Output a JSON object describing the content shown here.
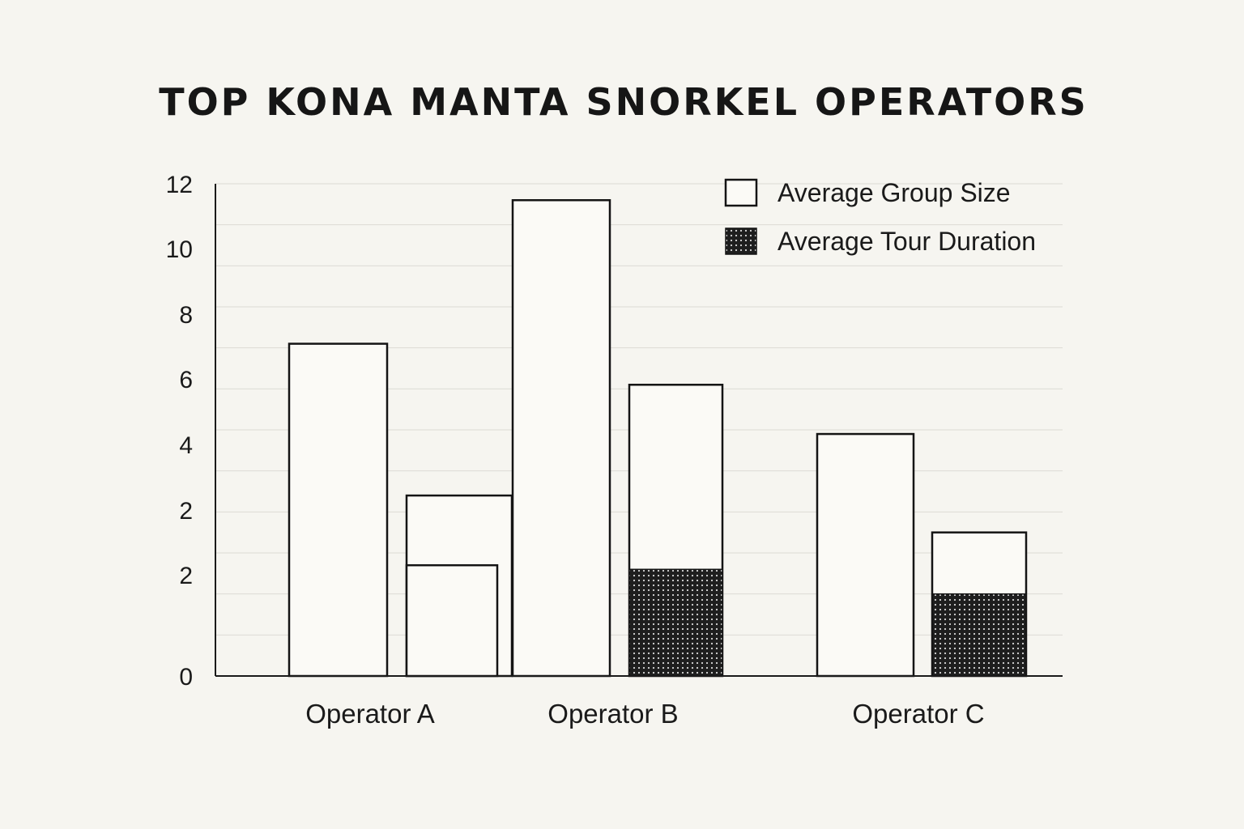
{
  "chart_data": {
    "type": "bar",
    "title": "TOP KONA MANTA SNORKEL OPERATORS",
    "xlabel": "",
    "ylabel": "",
    "ylim": [
      0,
      12
    ],
    "yticks": [
      "0",
      "2",
      "2",
      "4",
      "6",
      "8",
      "10",
      "12"
    ],
    "grid": true,
    "legend_position": "top-right",
    "legend": [
      {
        "label": "Average Group Size",
        "style": "empty"
      },
      {
        "label": "Average Tour Duration",
        "style": "dotted"
      }
    ],
    "categories": [
      "Operator A",
      "Operator B",
      "Operator C"
    ],
    "bars": [
      {
        "category": "Operator A",
        "style": "empty",
        "value": 8.1
      },
      {
        "category": "Operator A",
        "style": "empty",
        "value": 4.4
      },
      {
        "category": "Operator A",
        "style": "empty",
        "value": 2.7
      },
      {
        "category": "Operator B",
        "style": "empty",
        "value": 11.6
      },
      {
        "category": "Operator B",
        "style": "empty",
        "value": 7.1
      },
      {
        "category": "Operator B",
        "style": "dotted",
        "value": 2.6
      },
      {
        "category": "Operator C",
        "style": "empty",
        "value": 5.9
      },
      {
        "category": "Operator C",
        "style": "empty",
        "value": 3.5
      },
      {
        "category": "Operator C",
        "style": "dotted",
        "value": 2.0
      }
    ],
    "colors": {
      "background": "#f6f5f0",
      "ink": "#141414",
      "grid": "#dcdbd5"
    }
  }
}
